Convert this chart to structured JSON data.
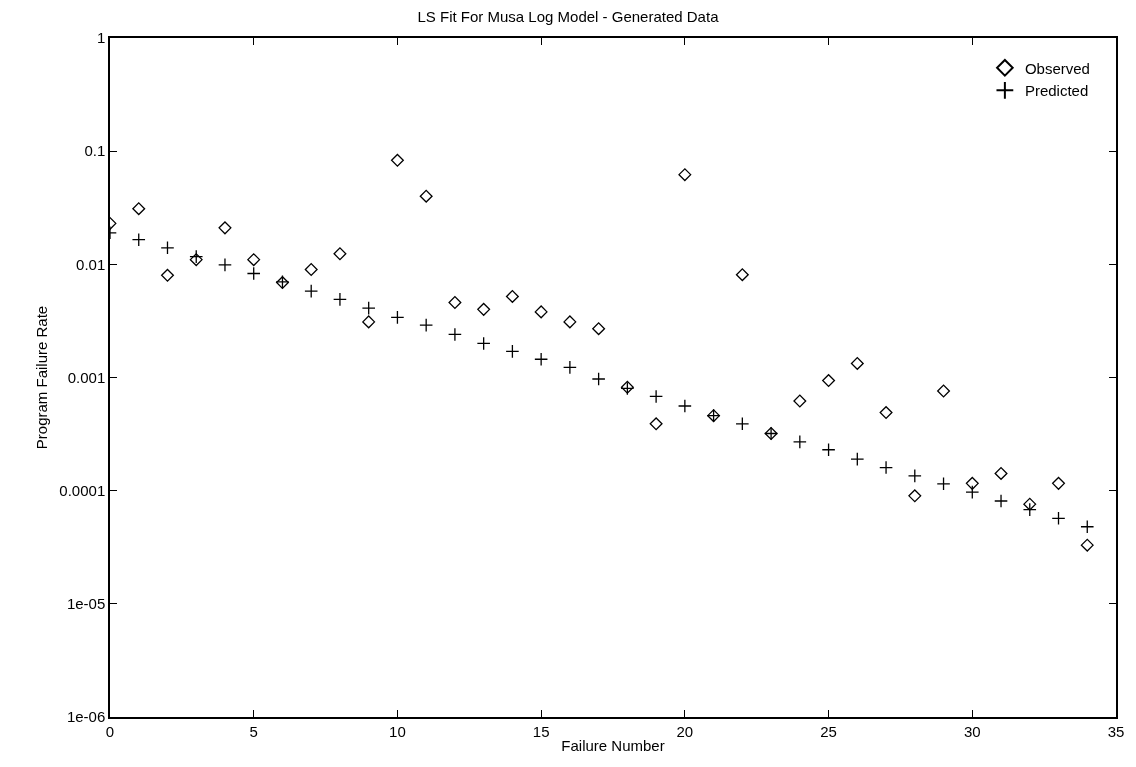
{
  "chart_data": {
    "type": "scatter",
    "title": "LS Fit For Musa Log Model - Generated Data",
    "xlabel": "Failure Number",
    "ylabel": "Program Failure Rate",
    "x": [
      0,
      1,
      2,
      3,
      4,
      5,
      6,
      7,
      8,
      9,
      10,
      11,
      12,
      13,
      14,
      15,
      16,
      17,
      18,
      19,
      20,
      21,
      22,
      23,
      24,
      25,
      26,
      27,
      28,
      29,
      30,
      31,
      32,
      33,
      34
    ],
    "series": [
      {
        "name": "Observed",
        "color": "#000000",
        "marker": "diamond",
        "values": [
          0.023,
          0.031,
          0.008,
          0.011,
          0.021,
          0.011,
          0.0069,
          0.009,
          0.0124,
          0.0031,
          0.083,
          0.04,
          0.0046,
          0.004,
          0.0052,
          0.0038,
          0.0031,
          0.0027,
          0.00082,
          0.00039,
          0.062,
          0.00046,
          0.0081,
          0.00032,
          0.00062,
          0.00094,
          0.00133,
          0.00049,
          9e-05,
          0.00076,
          0.000116,
          0.000142,
          7.6e-05,
          0.000116,
          3.3e-05
        ]
      },
      {
        "name": "Predicted",
        "color": "#000000",
        "marker": "cross",
        "values": [
          0.019,
          0.0165,
          0.014,
          0.0117,
          0.0099,
          0.0083,
          0.007,
          0.0058,
          0.0049,
          0.0041,
          0.0034,
          0.0029,
          0.0024,
          0.002,
          0.0017,
          0.00145,
          0.00123,
          0.00097,
          0.0008,
          0.00068,
          0.00056,
          0.00046,
          0.00039,
          0.00032,
          0.00027,
          0.00023,
          0.00019,
          0.00016,
          0.000135,
          0.000115,
          9.7e-05,
          8.1e-05,
          6.8e-05,
          5.7e-05,
          4.8e-05
        ]
      }
    ],
    "log": "y",
    "xlim": [
      0,
      35
    ],
    "xticks": [
      0,
      5,
      10,
      15,
      20,
      25,
      30,
      35
    ],
    "ylim": [
      1e-06,
      1
    ],
    "yticks": [
      {
        "value": 1e-06,
        "label": "1e-06"
      },
      {
        "value": 1e-05,
        "label": "1e-05"
      },
      0.0001,
      0.001,
      0.01,
      0.1,
      1
    ],
    "legend": "top right"
  }
}
